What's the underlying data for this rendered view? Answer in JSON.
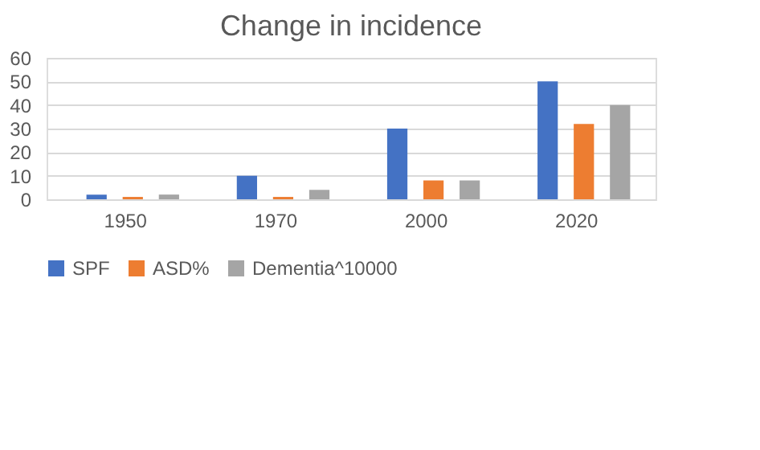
{
  "chart_data": {
    "type": "bar",
    "title": "Change in incidence",
    "categories": [
      "1950",
      "1970",
      "2000",
      "2020"
    ],
    "series": [
      {
        "name": "SPF",
        "color": "#4472c4",
        "values": [
          2,
          10,
          30,
          50
        ]
      },
      {
        "name": "ASD%",
        "color": "#ed7d31",
        "values": [
          1,
          1,
          8,
          32
        ]
      },
      {
        "name": "Dementia^10000",
        "color": "#a5a5a5",
        "values": [
          2,
          4,
          8,
          40
        ]
      }
    ],
    "ylim": [
      0,
      60
    ],
    "yticks": [
      0,
      10,
      20,
      30,
      40,
      50,
      60
    ],
    "grid": "y",
    "legend": "bottom"
  }
}
